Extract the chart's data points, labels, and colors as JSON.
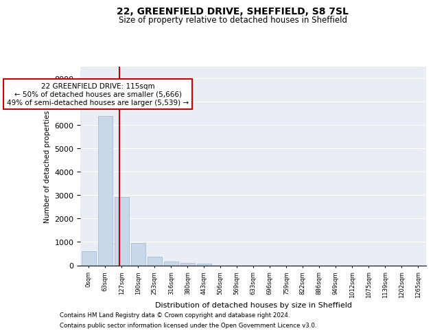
{
  "title": "22, GREENFIELD DRIVE, SHEFFIELD, S8 7SL",
  "subtitle": "Size of property relative to detached houses in Sheffield",
  "xlabel": "Distribution of detached houses by size in Sheffield",
  "ylabel": "Number of detached properties",
  "bar_color": "#c8d8e8",
  "bar_edge_color": "#9ab8cc",
  "background_color": "#e8eef4",
  "annotation_box_color": "#cc0000",
  "vline_color": "#cc0000",
  "vline_x": 1.85,
  "annotation_text": "22 GREENFIELD DRIVE: 115sqm\n← 50% of detached houses are smaller (5,666)\n49% of semi-detached houses are larger (5,539) →",
  "categories": [
    "0sqm",
    "63sqm",
    "127sqm",
    "190sqm",
    "253sqm",
    "316sqm",
    "380sqm",
    "443sqm",
    "506sqm",
    "569sqm",
    "633sqm",
    "696sqm",
    "759sqm",
    "822sqm",
    "886sqm",
    "949sqm",
    "1012sqm",
    "1075sqm",
    "1139sqm",
    "1202sqm",
    "1265sqm"
  ],
  "values": [
    590,
    6380,
    2920,
    960,
    360,
    160,
    95,
    70,
    0,
    0,
    0,
    0,
    0,
    0,
    0,
    0,
    0,
    0,
    0,
    0,
    0
  ],
  "ylim": [
    0,
    8500
  ],
  "yticks": [
    0,
    1000,
    2000,
    3000,
    4000,
    5000,
    6000,
    7000,
    8000
  ],
  "footer_line1": "Contains HM Land Registry data © Crown copyright and database right 2024.",
  "footer_line2": "Contains public sector information licensed under the Open Government Licence v3.0."
}
